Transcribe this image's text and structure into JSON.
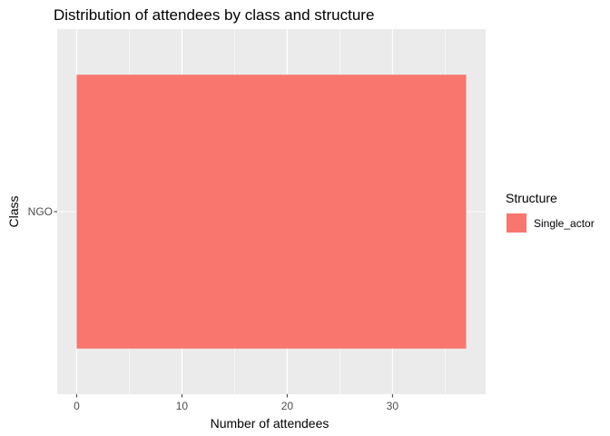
{
  "chart_data": {
    "type": "bar",
    "orientation": "horizontal",
    "title": "Distribution of attendees by class and structure",
    "xlabel": "Number of attendees",
    "ylabel": "Class",
    "categories": [
      "NGO"
    ],
    "series": [
      {
        "name": "Single_actor",
        "values": [
          37
        ]
      }
    ],
    "xlim": [
      -1.85,
      38.85
    ],
    "x_ticks": [
      0,
      10,
      20,
      30
    ],
    "x_tick_labels": [
      "0",
      "10",
      "20",
      "30"
    ],
    "grid": true,
    "legend": {
      "title": "Structure",
      "placement": "right",
      "entries": [
        "Single_actor"
      ]
    },
    "colors": {
      "Single_actor": "#F8766D",
      "panel_background": "#EBEBEB",
      "grid": "#FFFFFF"
    }
  }
}
